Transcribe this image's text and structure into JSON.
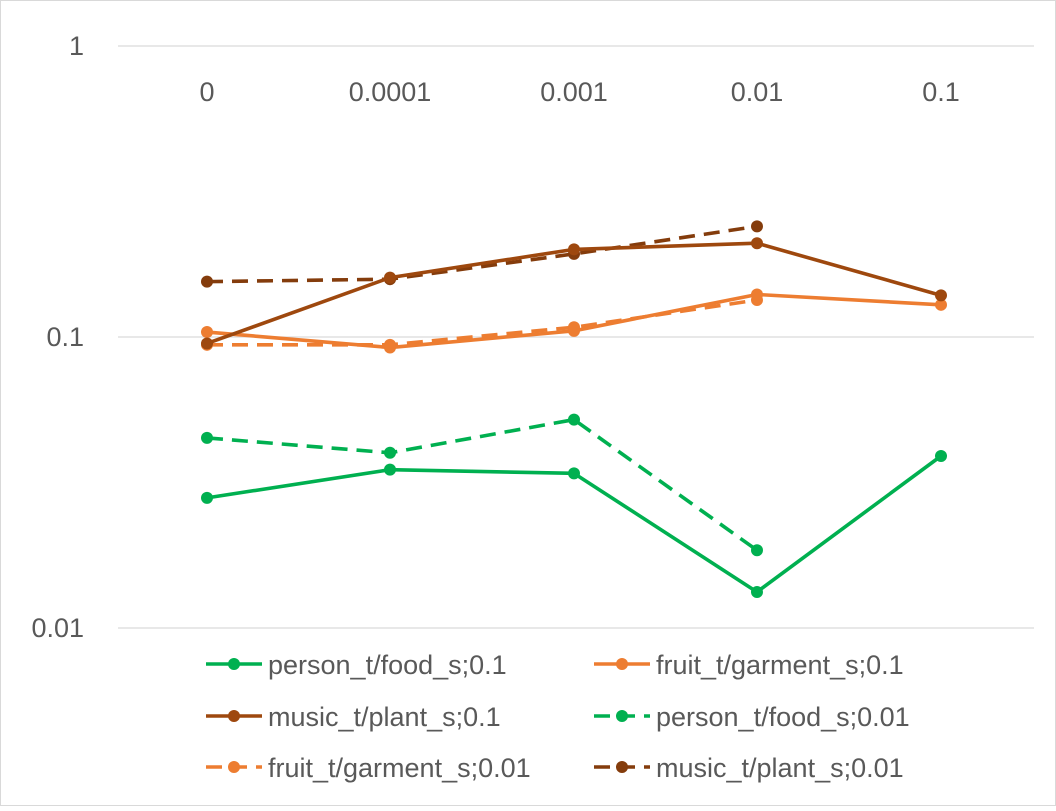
{
  "chart_data": {
    "type": "line",
    "title": "",
    "xlabel": "",
    "ylabel": "",
    "y_scale": "log",
    "ylim": [
      0.01,
      1
    ],
    "y_ticks": [
      "0.01",
      "0.1",
      "1"
    ],
    "x_tick_position": "top",
    "categories": [
      "0",
      "0.0001",
      "0.001",
      "0.01",
      "0.1"
    ],
    "gridlines": "horizontal",
    "legend_position": "bottom",
    "series": [
      {
        "name": "person_t/food_s;0.1",
        "color": "#00B050",
        "dash": "solid",
        "values": [
          0.028,
          0.035,
          0.034,
          0.0133,
          0.039
        ]
      },
      {
        "name": "fruit_t/garment_s;0.1",
        "color": "#ED7D31",
        "dash": "solid",
        "values": [
          0.104,
          0.092,
          0.105,
          0.14,
          0.129
        ]
      },
      {
        "name": "music_t/plant_s;0.1",
        "color": "#9E480E",
        "dash": "solid",
        "values": [
          0.095,
          0.16,
          0.2,
          0.21,
          0.139
        ]
      },
      {
        "name": "person_t/food_s;0.01",
        "color": "#00B050",
        "dash": "dashed",
        "values": [
          0.045,
          0.04,
          0.052,
          0.0185,
          null
        ]
      },
      {
        "name": "fruit_t/garment_s;0.01",
        "color": "#ED7D31",
        "dash": "dashed",
        "values": [
          0.094,
          0.094,
          0.108,
          0.134,
          null
        ]
      },
      {
        "name": "music_t/plant_s;0.01",
        "color": "#843C0C",
        "dash": "dashed",
        "values": [
          0.155,
          0.158,
          0.193,
          0.24,
          null
        ]
      }
    ]
  }
}
